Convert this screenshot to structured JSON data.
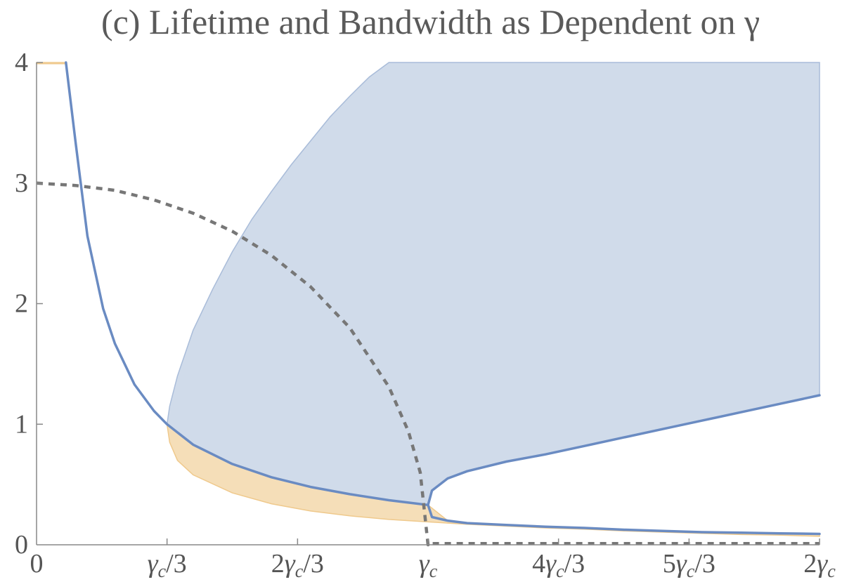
{
  "chart_data": {
    "type": "area",
    "title": "(c) Lifetime and Bandwidth as Dependent on γ",
    "xlabel": "",
    "ylabel": "",
    "xlim": [
      0,
      2
    ],
    "ylim": [
      0,
      4
    ],
    "x_unit_note": "γ/γc",
    "x_ticks": [
      {
        "value": 0,
        "label": "0"
      },
      {
        "value": 0.3333,
        "label": "γc/3"
      },
      {
        "value": 0.6667,
        "label": "2γc/3"
      },
      {
        "value": 1.0,
        "label": "γc"
      },
      {
        "value": 1.3333,
        "label": "4γc/3"
      },
      {
        "value": 1.6667,
        "label": "5γc/3"
      },
      {
        "value": 2.0,
        "label": "2γc"
      }
    ],
    "y_ticks": [
      {
        "value": 0,
        "label": "0"
      },
      {
        "value": 1,
        "label": "1"
      },
      {
        "value": 2,
        "label": "2"
      },
      {
        "value": 3,
        "label": "3"
      },
      {
        "value": 4,
        "label": "4"
      }
    ],
    "grid": false,
    "series": [
      {
        "style": "solid",
        "color": "#6a8bc2",
        "x": [
          0.075,
          0.1,
          0.13,
          0.17,
          0.2,
          0.25,
          0.3,
          0.3333,
          0.4,
          0.5,
          0.6,
          0.7,
          0.8,
          0.9,
          0.95,
          1.0
        ],
        "y": [
          4.0,
          3.33,
          2.56,
          1.96,
          1.67,
          1.33,
          1.11,
          1.0,
          0.83,
          0.67,
          0.56,
          0.48,
          0.42,
          0.37,
          0.35,
          0.33
        ]
      },
      {
        "style": "solid",
        "color": "#6a8bc2",
        "x": [
          1.0,
          1.01,
          1.05,
          1.1,
          1.2,
          1.3,
          1.4,
          1.5,
          1.6,
          1.7,
          1.8,
          1.9,
          2.0
        ],
        "y": [
          0.33,
          0.45,
          0.55,
          0.61,
          0.69,
          0.75,
          0.82,
          0.89,
          0.96,
          1.03,
          1.1,
          1.17,
          1.24
        ]
      },
      {
        "style": "solid",
        "color": "#6a8bc2",
        "x": [
          1.0,
          1.01,
          1.05,
          1.1,
          1.2,
          1.3,
          1.4,
          1.5,
          1.6,
          1.7,
          1.8,
          1.9,
          2.0
        ],
        "y": [
          0.33,
          0.23,
          0.2,
          0.18,
          0.165,
          0.15,
          0.14,
          0.125,
          0.115,
          0.105,
          0.1,
          0.095,
          0.09
        ]
      },
      {
        "style": "dashed",
        "color": "#777777",
        "x": [
          0,
          0.1,
          0.2,
          0.3,
          0.4,
          0.5,
          0.6,
          0.7,
          0.8,
          0.9,
          0.95,
          0.98,
          1.0,
          1.0,
          2.0
        ],
        "y": [
          3.0,
          2.98,
          2.94,
          2.86,
          2.75,
          2.6,
          2.4,
          2.14,
          1.8,
          1.31,
          0.94,
          0.6,
          0.0,
          0.01,
          0.01
        ]
      }
    ],
    "fills": [
      {
        "color": "#d0dbea",
        "edge": "#a9bcd9",
        "upper_x": [
          0.3333,
          0.34,
          0.36,
          0.4,
          0.45,
          0.5,
          0.55,
          0.6,
          0.65,
          0.7,
          0.75,
          0.8,
          0.85,
          0.9,
          0.95,
          1.0,
          1.1,
          1.2,
          1.3,
          1.4,
          1.5,
          1.6,
          1.7,
          1.8,
          1.9,
          2.0
        ],
        "upper_y": [
          1.0,
          1.15,
          1.4,
          1.78,
          2.12,
          2.43,
          2.7,
          2.93,
          3.15,
          3.35,
          3.55,
          3.72,
          3.88,
          4.0,
          4.0,
          4.0,
          4.0,
          4.0,
          4.0,
          4.0,
          4.0,
          4.0,
          4.0,
          4.0,
          4.0,
          4.0
        ],
        "lower_x": [
          0.3333,
          0.4,
          0.5,
          0.6,
          0.7,
          0.8,
          0.9,
          0.95,
          1.0,
          1.01,
          1.05,
          1.1,
          1.2,
          1.3,
          1.4,
          1.5,
          1.6,
          1.7,
          1.8,
          1.9,
          2.0
        ],
        "lower_y": [
          1.0,
          0.83,
          0.67,
          0.56,
          0.48,
          0.42,
          0.37,
          0.35,
          0.33,
          0.45,
          0.55,
          0.61,
          0.69,
          0.75,
          0.82,
          0.89,
          0.96,
          1.03,
          1.1,
          1.17,
          1.24
        ]
      },
      {
        "color": "#f5deb8",
        "edge": "#efc98c",
        "upper_x": [
          0.3333,
          0.4,
          0.5,
          0.6,
          0.7,
          0.8,
          0.9,
          0.95,
          1.0,
          1.05,
          1.1,
          1.2,
          1.3,
          1.4,
          1.5,
          1.6,
          1.7,
          1.8,
          1.9,
          2.0
        ],
        "upper_y": [
          1.0,
          0.83,
          0.67,
          0.56,
          0.48,
          0.42,
          0.37,
          0.35,
          0.33,
          0.2,
          0.18,
          0.165,
          0.15,
          0.14,
          0.125,
          0.115,
          0.105,
          0.1,
          0.095,
          0.09
        ],
        "lower_x": [
          0.3333,
          0.34,
          0.36,
          0.4,
          0.5,
          0.6,
          0.7,
          0.8,
          0.9,
          1.0,
          1.1,
          1.2,
          1.3,
          1.4,
          1.5,
          1.6,
          1.7,
          1.8,
          1.9,
          2.0
        ],
        "lower_y": [
          1.0,
          0.85,
          0.7,
          0.58,
          0.43,
          0.34,
          0.28,
          0.24,
          0.21,
          0.19,
          0.17,
          0.155,
          0.14,
          0.13,
          0.115,
          0.105,
          0.095,
          0.085,
          0.08,
          0.07
        ]
      },
      {
        "color": "#f5deb8",
        "edge": "#efc98c",
        "upper_x": [
          0,
          0.075
        ],
        "upper_y": [
          4.0,
          4.0
        ],
        "lower_x": [
          0,
          0.075
        ],
        "lower_y": [
          3.99,
          3.99
        ]
      }
    ]
  }
}
